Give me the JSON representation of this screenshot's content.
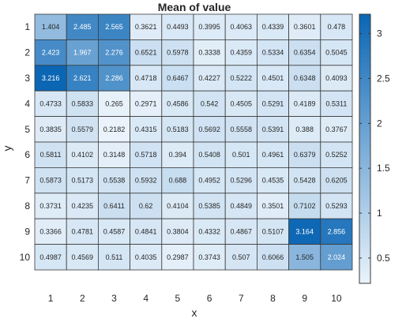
{
  "chart_data": {
    "type": "heatmap",
    "title": "Mean of value",
    "xlabel": "x",
    "ylabel": "y",
    "x_categories": [
      "1",
      "2",
      "3",
      "4",
      "5",
      "6",
      "7",
      "8",
      "9",
      "10"
    ],
    "y_categories": [
      "1",
      "2",
      "3",
      "4",
      "5",
      "6",
      "7",
      "8",
      "9",
      "10"
    ],
    "values": [
      [
        "1.404",
        "2.485",
        "2.565",
        "0.3621",
        "0.4493",
        "0.3995",
        "0.4063",
        "0.4339",
        "0.3601",
        "0.478"
      ],
      [
        "2.423",
        "1.967",
        "2.276",
        "0.6521",
        "0.5978",
        "0.3338",
        "0.4359",
        "0.5334",
        "0.6354",
        "0.5045"
      ],
      [
        "3.216",
        "2.621",
        "2.286",
        "0.4718",
        "0.6467",
        "0.4227",
        "0.5222",
        "0.4501",
        "0.6348",
        "0.4093"
      ],
      [
        "0.4733",
        "0.5833",
        "0.265",
        "0.2971",
        "0.4586",
        "0.542",
        "0.4505",
        "0.5291",
        "0.4189",
        "0.5311"
      ],
      [
        "0.3835",
        "0.5579",
        "0.2182",
        "0.4315",
        "0.5183",
        "0.5692",
        "0.5558",
        "0.5391",
        "0.388",
        "0.3767"
      ],
      [
        "0.5811",
        "0.4102",
        "0.3148",
        "0.5718",
        "0.394",
        "0.5408",
        "0.501",
        "0.4961",
        "0.6379",
        "0.5252"
      ],
      [
        "0.5873",
        "0.5173",
        "0.5538",
        "0.5932",
        "0.688",
        "0.4952",
        "0.5296",
        "0.4535",
        "0.5428",
        "0.6205"
      ],
      [
        "0.3731",
        "0.4235",
        "0.6411",
        "0.62",
        "0.4104",
        "0.5385",
        "0.4849",
        "0.3501",
        "0.7102",
        "0.5293"
      ],
      [
        "0.3366",
        "0.4781",
        "0.4587",
        "0.4841",
        "0.3804",
        "0.4332",
        "0.4867",
        "0.5107",
        "3.164",
        "2.856"
      ],
      [
        "0.4987",
        "0.4569",
        "0.511",
        "0.4035",
        "0.2987",
        "0.3743",
        "0.507",
        "0.6066",
        "1.505",
        "2.024"
      ]
    ],
    "colorbar": {
      "ticks": [
        0.5,
        1,
        1.5,
        2,
        2.5,
        3
      ],
      "tick_labels": [
        "0.5",
        "1",
        "1.5",
        "2",
        "2.5",
        "3"
      ],
      "range": [
        0.2182,
        3.216
      ]
    },
    "colors": {
      "low": "#eaf3fb",
      "high": "#0b66b4",
      "grid": "#3a3a3a",
      "text_dark": "#262626",
      "text_light": "#ffffff"
    }
  }
}
